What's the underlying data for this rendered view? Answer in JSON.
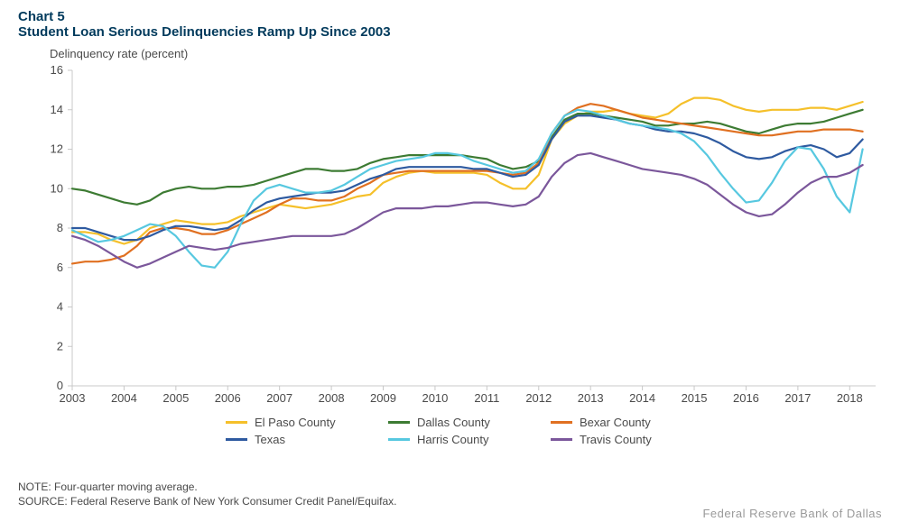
{
  "header": {
    "chart_number": "Chart 5",
    "title": "Student Loan Serious Delinquencies Ramp Up Since 2003",
    "y_label": "Delinquency rate (percent)"
  },
  "chart": {
    "type": "line",
    "background_color": "#ffffff",
    "axis_color": "#c8c8c8",
    "tick_color": "#c8c8c8",
    "tick_label_color": "#4a4a4a",
    "tick_label_fontsize": 13,
    "ylim": [
      0,
      16
    ],
    "ytick_step": 2,
    "xlim": [
      2003,
      2018.5
    ],
    "x_ticks": [
      2003,
      2004,
      2005,
      2006,
      2007,
      2008,
      2009,
      2010,
      2011,
      2012,
      2013,
      2014,
      2015,
      2016,
      2017,
      2018
    ],
    "line_width": 2.2,
    "x_values": [
      2003.0,
      2003.25,
      2003.5,
      2003.75,
      2004.0,
      2004.25,
      2004.5,
      2004.75,
      2005.0,
      2005.25,
      2005.5,
      2005.75,
      2006.0,
      2006.25,
      2006.5,
      2006.75,
      2007.0,
      2007.25,
      2007.5,
      2007.75,
      2008.0,
      2008.25,
      2008.5,
      2008.75,
      2009.0,
      2009.25,
      2009.5,
      2009.75,
      2010.0,
      2010.25,
      2010.5,
      2010.75,
      2011.0,
      2011.25,
      2011.5,
      2011.75,
      2012.0,
      2012.25,
      2012.5,
      2012.75,
      2013.0,
      2013.25,
      2013.5,
      2013.75,
      2014.0,
      2014.25,
      2014.5,
      2014.75,
      2015.0,
      2015.25,
      2015.5,
      2015.75,
      2016.0,
      2016.25,
      2016.5,
      2016.75,
      2017.0,
      2017.25,
      2017.5,
      2017.75,
      2018.0,
      2018.25
    ],
    "series": [
      {
        "name": "El Paso County",
        "color": "#f5c02a",
        "values": [
          7.8,
          7.8,
          7.7,
          7.4,
          7.2,
          7.4,
          8.0,
          8.2,
          8.4,
          8.3,
          8.2,
          8.2,
          8.3,
          8.6,
          8.8,
          9.0,
          9.2,
          9.1,
          9.0,
          9.1,
          9.2,
          9.4,
          9.6,
          9.7,
          10.3,
          10.6,
          10.8,
          10.9,
          10.8,
          10.8,
          10.8,
          10.8,
          10.7,
          10.3,
          10.0,
          10.0,
          10.7,
          12.5,
          13.3,
          13.7,
          13.9,
          13.9,
          14.0,
          13.8,
          13.7,
          13.6,
          13.8,
          14.3,
          14.6,
          14.6,
          14.5,
          14.2,
          14.0,
          13.9,
          14.0,
          14.0,
          14.0,
          14.1,
          14.1,
          14.0,
          14.2,
          14.4
        ]
      },
      {
        "name": "Dallas County",
        "color": "#3d7b33",
        "values": [
          10.0,
          9.9,
          9.7,
          9.5,
          9.3,
          9.2,
          9.4,
          9.8,
          10.0,
          10.1,
          10.0,
          10.0,
          10.1,
          10.1,
          10.2,
          10.4,
          10.6,
          10.8,
          11.0,
          11.0,
          10.9,
          10.9,
          11.0,
          11.3,
          11.5,
          11.6,
          11.7,
          11.7,
          11.7,
          11.7,
          11.7,
          11.6,
          11.5,
          11.2,
          11.0,
          11.1,
          11.4,
          12.6,
          13.5,
          13.8,
          13.8,
          13.7,
          13.6,
          13.5,
          13.4,
          13.2,
          13.2,
          13.3,
          13.3,
          13.4,
          13.3,
          13.1,
          12.9,
          12.8,
          13.0,
          13.2,
          13.3,
          13.3,
          13.4,
          13.6,
          13.8,
          14.0
        ]
      },
      {
        "name": "Bexar County",
        "color": "#e07021",
        "values": [
          6.2,
          6.3,
          6.3,
          6.4,
          6.6,
          7.1,
          7.8,
          8.0,
          8.0,
          7.9,
          7.7,
          7.7,
          7.9,
          8.2,
          8.5,
          8.8,
          9.2,
          9.5,
          9.5,
          9.4,
          9.4,
          9.6,
          10.0,
          10.3,
          10.7,
          10.8,
          10.9,
          10.9,
          10.9,
          10.9,
          10.9,
          10.9,
          10.9,
          10.8,
          10.7,
          10.8,
          11.3,
          12.8,
          13.7,
          14.1,
          14.3,
          14.2,
          14.0,
          13.8,
          13.6,
          13.5,
          13.4,
          13.3,
          13.2,
          13.1,
          13.0,
          12.9,
          12.8,
          12.7,
          12.7,
          12.8,
          12.9,
          12.9,
          13.0,
          13.0,
          13.0,
          12.9
        ]
      },
      {
        "name": "Texas",
        "color": "#2e5aa0",
        "values": [
          8.0,
          8.0,
          7.8,
          7.6,
          7.4,
          7.4,
          7.6,
          7.9,
          8.1,
          8.1,
          8.0,
          7.9,
          8.0,
          8.4,
          8.9,
          9.3,
          9.5,
          9.6,
          9.7,
          9.8,
          9.8,
          9.9,
          10.2,
          10.5,
          10.7,
          11.0,
          11.1,
          11.1,
          11.1,
          11.1,
          11.1,
          11.0,
          11.0,
          10.8,
          10.6,
          10.7,
          11.2,
          12.5,
          13.4,
          13.7,
          13.7,
          13.6,
          13.5,
          13.3,
          13.2,
          13.0,
          12.9,
          12.9,
          12.8,
          12.6,
          12.3,
          11.9,
          11.6,
          11.5,
          11.6,
          11.9,
          12.1,
          12.2,
          12.0,
          11.6,
          11.8,
          12.5
        ]
      },
      {
        "name": "Harris County",
        "color": "#57c8e0",
        "values": [
          7.9,
          7.6,
          7.3,
          7.4,
          7.6,
          7.9,
          8.2,
          8.1,
          7.6,
          6.8,
          6.1,
          6.0,
          6.8,
          8.2,
          9.4,
          10.0,
          10.2,
          10.0,
          9.8,
          9.8,
          9.9,
          10.2,
          10.6,
          11.0,
          11.2,
          11.4,
          11.5,
          11.6,
          11.8,
          11.8,
          11.7,
          11.4,
          11.2,
          11.0,
          10.8,
          10.9,
          11.5,
          12.8,
          13.7,
          14.0,
          13.9,
          13.7,
          13.5,
          13.3,
          13.2,
          13.1,
          13.0,
          12.8,
          12.4,
          11.7,
          10.8,
          10.0,
          9.3,
          9.4,
          10.3,
          11.4,
          12.1,
          12.0,
          11.0,
          9.6,
          8.8,
          12.0
        ]
      },
      {
        "name": "Travis County",
        "color": "#7b579b",
        "values": [
          7.6,
          7.4,
          7.1,
          6.7,
          6.3,
          6.0,
          6.2,
          6.5,
          6.8,
          7.1,
          7.0,
          6.9,
          7.0,
          7.2,
          7.3,
          7.4,
          7.5,
          7.6,
          7.6,
          7.6,
          7.6,
          7.7,
          8.0,
          8.4,
          8.8,
          9.0,
          9.0,
          9.0,
          9.1,
          9.1,
          9.2,
          9.3,
          9.3,
          9.2,
          9.1,
          9.2,
          9.6,
          10.6,
          11.3,
          11.7,
          11.8,
          11.6,
          11.4,
          11.2,
          11.0,
          10.9,
          10.8,
          10.7,
          10.5,
          10.2,
          9.7,
          9.2,
          8.8,
          8.6,
          8.7,
          9.2,
          9.8,
          10.3,
          10.6,
          10.6,
          10.8,
          11.2
        ]
      }
    ]
  },
  "legend": {
    "items": [
      {
        "label": "El Paso County",
        "color": "#f5c02a"
      },
      {
        "label": "Dallas County",
        "color": "#3d7b33"
      },
      {
        "label": "Bexar County",
        "color": "#e07021"
      },
      {
        "label": "Texas",
        "color": "#2e5aa0"
      },
      {
        "label": "Harris County",
        "color": "#57c8e0"
      },
      {
        "label": "Travis County",
        "color": "#7b579b"
      }
    ]
  },
  "footer": {
    "note_line1": "NOTE: Four-quarter moving average.",
    "note_line2": "SOURCE: Federal Reserve Bank of New York Consumer Credit Panel/Equifax.",
    "attribution": "Federal Reserve Bank of Dallas"
  }
}
